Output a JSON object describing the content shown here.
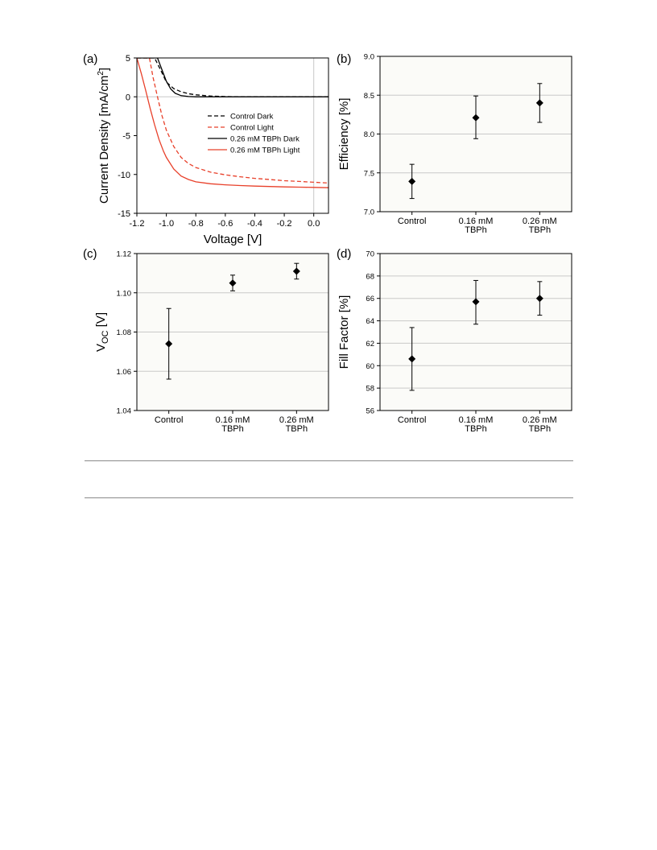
{
  "chart_data": [
    {
      "panel": "(a)",
      "type": "line",
      "xlabel": "Voltage [V]",
      "ylabel": "Current Density [mA/cm",
      "ylabel_sup": "2",
      "ylabel_end": "]",
      "xlim": [
        -1.2,
        0.1
      ],
      "ylim": [
        -15,
        5
      ],
      "xticks": [
        "-1.2",
        "-1.0",
        "-0.8",
        "-0.6",
        "-0.4",
        "-0.2",
        "0.0"
      ],
      "yticks": [
        "5",
        "0",
        "-5",
        "-10",
        "-15"
      ],
      "legend_position": "center-right",
      "series": [
        {
          "name": "Control Dark",
          "color": "#000000",
          "dash": true,
          "x": [
            -1.2,
            -1.08,
            -1.04,
            -1.0,
            -0.95,
            -0.9,
            -0.85,
            -0.8,
            -0.7,
            -0.6,
            -0.5,
            -0.4,
            0.1
          ],
          "y": [
            5.0,
            5.0,
            3.5,
            1.9,
            1.05,
            0.65,
            0.4,
            0.25,
            0.1,
            0.03,
            0.0,
            0.0,
            0.0
          ]
        },
        {
          "name": "Control Light",
          "color": "#e8402a",
          "dash": true,
          "x": [
            -1.2,
            -1.115,
            -1.09,
            -1.06,
            -1.03,
            -1.0,
            -0.95,
            -0.9,
            -0.85,
            -0.8,
            -0.7,
            -0.6,
            -0.5,
            -0.4,
            -0.3,
            -0.2,
            -0.1,
            0.0,
            0.1
          ],
          "y": [
            5.0,
            5.0,
            2.5,
            0.0,
            -2.4,
            -4.3,
            -6.4,
            -7.8,
            -8.6,
            -9.1,
            -9.7,
            -10.05,
            -10.3,
            -10.5,
            -10.65,
            -10.8,
            -10.9,
            -11.0,
            -11.1
          ]
        },
        {
          "name": "0.26 mM TBPh Dark",
          "color": "#000000",
          "dash": false,
          "x": [
            -1.2,
            -1.06,
            -1.03,
            -1.0,
            -0.97,
            -0.94,
            -0.9,
            -0.85,
            -0.8,
            -0.7,
            0.1
          ],
          "y": [
            5.0,
            5.0,
            3.5,
            2.0,
            1.0,
            0.45,
            0.15,
            0.04,
            0.0,
            0.0,
            0.0
          ]
        },
        {
          "name": "0.26 mM TBPh Light",
          "color": "#e8402a",
          "dash": false,
          "x": [
            -1.2,
            -1.17,
            -1.14,
            -1.11,
            -1.08,
            -1.05,
            -1.02,
            -1.0,
            -0.95,
            -0.9,
            -0.85,
            -0.8,
            -0.7,
            -0.6,
            -0.5,
            -0.4,
            -0.3,
            -0.2,
            -0.1,
            0.0,
            0.1
          ],
          "y": [
            5.0,
            3.0,
            0.8,
            -1.5,
            -3.6,
            -5.5,
            -7.0,
            -7.8,
            -9.3,
            -10.2,
            -10.65,
            -10.95,
            -11.2,
            -11.33,
            -11.42,
            -11.5,
            -11.55,
            -11.6,
            -11.63,
            -11.66,
            -11.7
          ]
        }
      ]
    },
    {
      "panel": "(b)",
      "type": "scatter",
      "ylabel": "Efficiency [%]",
      "categories": [
        [
          "Control"
        ],
        [
          "0.16 mM",
          "TBPh"
        ],
        [
          "0.26 mM",
          "TBPh"
        ]
      ],
      "ylim": [
        7.0,
        9.0
      ],
      "yticks": [
        "7.0",
        "7.5",
        "8.0",
        "8.5",
        "9.0"
      ],
      "grid": true,
      "values": [
        7.39,
        8.21,
        8.4
      ],
      "err_low": [
        7.17,
        7.94,
        8.15
      ],
      "err_high": [
        7.61,
        8.49,
        8.65
      ]
    },
    {
      "panel": "(c)",
      "type": "scatter",
      "ylabel": "V",
      "ylabel_sub": "OC",
      "ylabel_end": " [V]",
      "categories": [
        [
          "Control"
        ],
        [
          "0.16 mM",
          "TBPh"
        ],
        [
          "0.26 mM",
          "TBPh"
        ]
      ],
      "ylim": [
        1.04,
        1.12
      ],
      "yticks": [
        "1.04",
        "1.06",
        "1.08",
        "1.10",
        "1.12"
      ],
      "grid": true,
      "values": [
        1.074,
        1.105,
        1.111
      ],
      "err_low": [
        1.056,
        1.101,
        1.107
      ],
      "err_high": [
        1.092,
        1.109,
        1.115
      ]
    },
    {
      "panel": "(d)",
      "type": "scatter",
      "ylabel": "Fill Factor [%]",
      "categories": [
        [
          "Control"
        ],
        [
          "0.16 mM",
          "TBPh"
        ],
        [
          "0.26 mM",
          "TBPh"
        ]
      ],
      "ylim": [
        56,
        70
      ],
      "yticks": [
        "56",
        "58",
        "60",
        "62",
        "64",
        "66",
        "68",
        "70"
      ],
      "grid": true,
      "values": [
        60.6,
        65.7,
        66.0
      ],
      "err_low": [
        57.8,
        63.7,
        64.5
      ],
      "err_high": [
        63.4,
        67.6,
        67.5
      ]
    }
  ]
}
